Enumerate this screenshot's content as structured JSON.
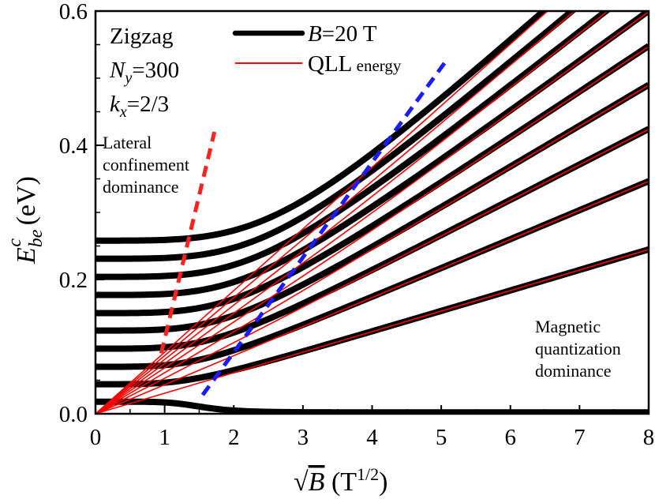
{
  "chart_data": {
    "type": "line",
    "x_axis": {
      "label_prefix": "√",
      "label_var": "B",
      "label_unit_base": " (T",
      "label_unit_sup": "1/2",
      "label_unit_close": ")",
      "range": [
        0,
        8
      ],
      "ticks": [
        0,
        1,
        2,
        3,
        4,
        5,
        6,
        7,
        8
      ]
    },
    "y_axis": {
      "label_var": "E",
      "label_sub": "be",
      "label_sup": "c",
      "label_unit": " (eV)",
      "range": [
        0,
        0.6
      ],
      "ticks": [
        "0.0",
        "0.2",
        "0.4",
        "0.6"
      ],
      "minor_step": 0.05
    },
    "annotations": {
      "system": "Zigzag",
      "ny_var": "N",
      "ny_sub": "y",
      "ny_value": "=300",
      "kx_var": "k",
      "kx_sub": "x",
      "kx_value": "=2/3",
      "lateral": [
        "Lateral",
        "confinement",
        "dominance"
      ],
      "magnetic": [
        "Magnetic",
        "quantization",
        "dominance"
      ]
    },
    "legend": [
      {
        "var": "B",
        "text": "=20 T",
        "color": "#000000",
        "style": "thick"
      },
      {
        "text": "QLL",
        "sub": " energy",
        "color": "#ff0000",
        "style": "thin"
      }
    ],
    "series": [
      {
        "n": 0,
        "low_B_energy": 0.018,
        "qll_slope": 0.0
      },
      {
        "n": 1,
        "low_B_energy": 0.044,
        "qll_slope": 0.0306
      },
      {
        "n": 2,
        "low_B_energy": 0.07,
        "qll_slope": 0.0433
      },
      {
        "n": 3,
        "low_B_energy": 0.097,
        "qll_slope": 0.053
      },
      {
        "n": 4,
        "low_B_energy": 0.124,
        "qll_slope": 0.0612
      },
      {
        "n": 5,
        "low_B_energy": 0.15,
        "qll_slope": 0.0684
      },
      {
        "n": 6,
        "low_B_energy": 0.177,
        "qll_slope": 0.0749
      },
      {
        "n": 7,
        "low_B_energy": 0.204,
        "qll_slope": 0.081
      },
      {
        "n": 8,
        "low_B_energy": 0.231,
        "qll_slope": 0.0866
      },
      {
        "n": 9,
        "low_B_energy": 0.258,
        "qll_slope": 0.0918
      }
    ],
    "boundaries": [
      {
        "name": "lateral-confinement-boundary",
        "color": "#ff2020",
        "points": [
          [
            0.95,
            0.09
          ],
          [
            1.72,
            0.42
          ]
        ]
      },
      {
        "name": "magnetic-quantization-boundary",
        "color": "#1a1aff",
        "points": [
          [
            1.55,
            0.028
          ],
          [
            5.1,
            0.53
          ]
        ]
      }
    ]
  }
}
